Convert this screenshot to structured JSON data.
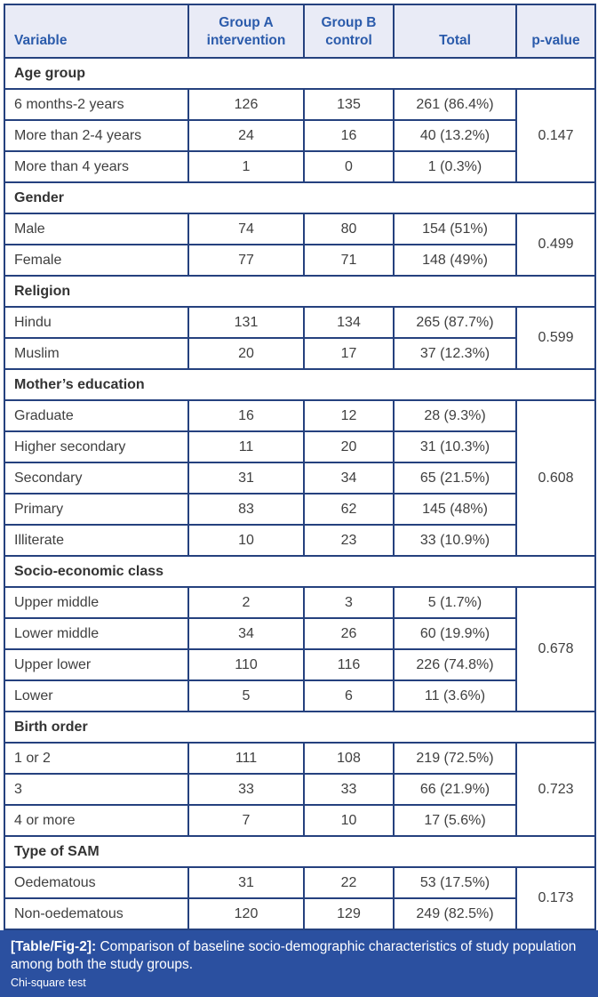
{
  "table": {
    "columns": [
      {
        "label": "Variable"
      },
      {
        "label": "Group A intervention"
      },
      {
        "label": "Group B control"
      },
      {
        "label": "Total"
      },
      {
        "label": "p-value"
      }
    ],
    "sections": [
      {
        "title": "Age group",
        "p_value": "0.147",
        "rows": [
          {
            "label": "6 months-2 years",
            "group_a": "126",
            "group_b": "135",
            "total": "261 (86.4%)"
          },
          {
            "label": "More than 2-4 years",
            "group_a": "24",
            "group_b": "16",
            "total": "40 (13.2%)"
          },
          {
            "label": "More than 4 years",
            "group_a": "1",
            "group_b": "0",
            "total": "1 (0.3%)"
          }
        ]
      },
      {
        "title": "Gender",
        "p_value": "0.499",
        "rows": [
          {
            "label": "Male",
            "group_a": "74",
            "group_b": "80",
            "total": "154 (51%)"
          },
          {
            "label": "Female",
            "group_a": "77",
            "group_b": "71",
            "total": "148 (49%)"
          }
        ]
      },
      {
        "title": "Religion",
        "p_value": "0.599",
        "rows": [
          {
            "label": "Hindu",
            "group_a": "131",
            "group_b": "134",
            "total": "265 (87.7%)"
          },
          {
            "label": "Muslim",
            "group_a": "20",
            "group_b": "17",
            "total": "37 (12.3%)"
          }
        ]
      },
      {
        "title": "Mother’s education",
        "p_value": "0.608",
        "rows": [
          {
            "label": "Graduate",
            "group_a": "16",
            "group_b": "12",
            "total": "28 (9.3%)"
          },
          {
            "label": "Higher secondary",
            "group_a": "11",
            "group_b": "20",
            "total": "31 (10.3%)"
          },
          {
            "label": "Secondary",
            "group_a": "31",
            "group_b": "34",
            "total": "65 (21.5%)"
          },
          {
            "label": "Primary",
            "group_a": "83",
            "group_b": "62",
            "total": "145 (48%)"
          },
          {
            "label": "Illiterate",
            "group_a": "10",
            "group_b": "23",
            "total": "33 (10.9%)"
          }
        ]
      },
      {
        "title": "Socio-economic class",
        "p_value": "0.678",
        "rows": [
          {
            "label": "Upper middle",
            "group_a": "2",
            "group_b": "3",
            "total": "5 (1.7%)"
          },
          {
            "label": "Lower middle",
            "group_a": "34",
            "group_b": "26",
            "total": "60 (19.9%)"
          },
          {
            "label": "Upper lower",
            "group_a": "110",
            "group_b": "116",
            "total": "226 (74.8%)"
          },
          {
            "label": "Lower",
            "group_a": "5",
            "group_b": "6",
            "total": "11 (3.6%)"
          }
        ]
      },
      {
        "title": "Birth order",
        "p_value": "0.723",
        "rows": [
          {
            "label": "1 or 2",
            "group_a": "111",
            "group_b": "108",
            "total": "219 (72.5%)"
          },
          {
            "label": "3",
            "group_a": "33",
            "group_b": "33",
            "total": "66 (21.9%)"
          },
          {
            "label": "4 or more",
            "group_a": "7",
            "group_b": "10",
            "total": "17 (5.6%)"
          }
        ]
      },
      {
        "title": "Type of SAM",
        "p_value": "0.173",
        "rows": [
          {
            "label": "Oedematous",
            "group_a": "31",
            "group_b": "22",
            "total": "53 (17.5%)"
          },
          {
            "label": "Non-oedematous",
            "group_a": "120",
            "group_b": "129",
            "total": "249 (82.5%)"
          }
        ]
      }
    ]
  },
  "caption": {
    "label": "[Table/Fig-2]:",
    "text": "Comparison of baseline socio-demographic characteristics of study population among both the study groups.",
    "note": "Chi-square test"
  },
  "colors": {
    "border": "#25417e",
    "header_background": "#e9ebf6",
    "header_text": "#2b5bab",
    "body_text": "#3f3f3f",
    "caption_background": "#2b50a0",
    "caption_text": "#ffffff"
  }
}
